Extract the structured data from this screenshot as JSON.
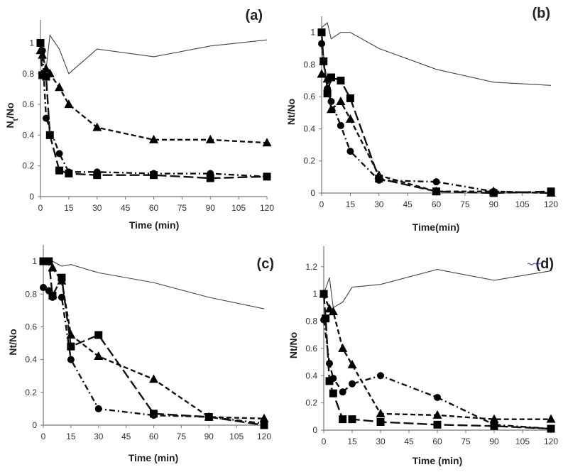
{
  "chart_data": [
    {
      "type": "line",
      "panel_label": "(a)",
      "xlabel": "Time (min)",
      "ylabel": {
        "main": "N",
        "sub": "t",
        "rest": "/No"
      },
      "xlim": [
        0,
        120
      ],
      "ylim": [
        0,
        1.15
      ],
      "xticks": [
        0,
        15,
        30,
        45,
        60,
        75,
        90,
        105,
        120
      ],
      "yticks": [
        0,
        0.2,
        0.4,
        0.6,
        0.8,
        1
      ],
      "grid": false,
      "series": [
        {
          "marker": "none",
          "dash": "solid",
          "x": [
            0,
            3,
            5,
            10,
            15,
            30,
            60,
            90,
            120
          ],
          "y": [
            1,
            0.83,
            1.05,
            0.96,
            0.8,
            0.96,
            0.91,
            0.98,
            1.02
          ]
        },
        {
          "marker": "triangle",
          "dash": "dashed",
          "x": [
            0,
            1,
            3,
            5,
            10,
            15,
            30,
            60,
            90,
            120
          ],
          "y": [
            0.95,
            0.92,
            0.83,
            0.8,
            0.71,
            0.6,
            0.45,
            0.37,
            0.37,
            0.35
          ]
        },
        {
          "marker": "circle",
          "dash": "dash-dot",
          "x": [
            0,
            1,
            3,
            10,
            15,
            30,
            60,
            90,
            120
          ],
          "y": [
            1,
            0.95,
            0.51,
            0.28,
            0.16,
            0.16,
            0.15,
            0.15,
            0.13
          ]
        },
        {
          "marker": "square",
          "dash": "long-dash",
          "x": [
            0,
            1,
            3,
            5,
            10,
            15,
            30,
            60,
            90,
            120
          ],
          "y": [
            1,
            0.79,
            0.78,
            0.4,
            0.17,
            0.15,
            0.14,
            0.14,
            0.12,
            0.13
          ]
        }
      ]
    },
    {
      "type": "line",
      "panel_label": "(b)",
      "xlabel": "Time(min)",
      "ylabel": {
        "main": "Nt/No",
        "sub": "",
        "rest": ""
      },
      "xlim": [
        0,
        120
      ],
      "ylim": [
        0,
        1.1
      ],
      "xticks": [
        0,
        15,
        30,
        45,
        60,
        75,
        90,
        105,
        120
      ],
      "yticks": [
        0,
        0.2,
        0.4,
        0.6,
        0.8,
        1
      ],
      "grid": false,
      "series": [
        {
          "marker": "none",
          "dash": "solid",
          "x": [
            0,
            3,
            5,
            10,
            15,
            30,
            60,
            90,
            120
          ],
          "y": [
            1.03,
            1.06,
            0.96,
            1.0,
            1.0,
            0.9,
            0.77,
            0.69,
            0.67
          ]
        },
        {
          "marker": "square",
          "dash": "long-dash",
          "x": [
            0,
            1,
            3,
            5,
            10,
            15,
            30,
            60,
            90,
            120
          ],
          "y": [
            1.0,
            0.82,
            0.62,
            0.72,
            0.7,
            0.59,
            0.09,
            0.01,
            0.0,
            0.01
          ]
        },
        {
          "marker": "triangle",
          "dash": "dashed",
          "x": [
            0,
            3,
            5,
            10,
            15,
            30,
            60,
            90,
            120
          ],
          "y": [
            0.74,
            0.71,
            0.52,
            0.57,
            0.46,
            0.11,
            0.01,
            0.01,
            0.0
          ]
        },
        {
          "marker": "circle",
          "dash": "dash-dot",
          "x": [
            0,
            3,
            5,
            10,
            15,
            30,
            60,
            90,
            120
          ],
          "y": [
            0.93,
            0.65,
            0.57,
            0.42,
            0.26,
            0.08,
            0.07,
            0.01,
            0.0
          ]
        }
      ]
    },
    {
      "type": "line",
      "panel_label": "(c)",
      "xlabel": "Time (min)",
      "ylabel": {
        "main": "Nt/No",
        "sub": "",
        "rest": ""
      },
      "xlim": [
        0,
        120
      ],
      "ylim": [
        0,
        1.1
      ],
      "xticks": [
        0,
        15,
        30,
        45,
        60,
        75,
        90,
        105,
        120
      ],
      "yticks": [
        0,
        0.2,
        0.4,
        0.6,
        0.8,
        1
      ],
      "grid": false,
      "series": [
        {
          "marker": "none",
          "dash": "solid",
          "x": [
            0,
            5,
            10,
            15,
            30,
            60,
            90,
            120
          ],
          "y": [
            1.0,
            1.0,
            0.97,
            0.98,
            0.93,
            0.87,
            0.78,
            0.71
          ]
        },
        {
          "marker": "square",
          "dash": "long-dash",
          "x": [
            0,
            3,
            5,
            10,
            15,
            30,
            60,
            90,
            120
          ],
          "y": [
            1.0,
            1.0,
            0.79,
            0.9,
            0.48,
            0.55,
            0.07,
            0.05,
            0.0
          ]
        },
        {
          "marker": "triangle",
          "dash": "dashed",
          "x": [
            5,
            10,
            15,
            30,
            60,
            90,
            120
          ],
          "y": [
            0.96,
            0.88,
            0.55,
            0.42,
            0.28,
            0.05,
            0.04
          ]
        },
        {
          "marker": "circle",
          "dash": "dash-dot",
          "x": [
            0,
            3,
            5,
            10,
            15,
            30,
            60,
            90,
            120
          ],
          "y": [
            0.84,
            0.82,
            0.78,
            0.78,
            0.4,
            0.1,
            0.06,
            0.05,
            0.01
          ]
        }
      ]
    },
    {
      "type": "line",
      "panel_label": "(d)",
      "xlabel": "Time (min)",
      "ylabel": {
        "main": "Nt/No",
        "sub": "",
        "rest": ""
      },
      "xlim": [
        0,
        120
      ],
      "ylim": [
        0,
        1.35
      ],
      "xticks": [
        0,
        15,
        30,
        45,
        60,
        75,
        90,
        105,
        120
      ],
      "yticks": [
        0,
        0.2,
        0.4,
        0.6,
        0.8,
        1,
        1.2
      ],
      "grid": false,
      "series": [
        {
          "marker": "none",
          "dash": "solid",
          "x": [
            0,
            3,
            5,
            10,
            15,
            30,
            60,
            90,
            120
          ],
          "y": [
            1.0,
            1.12,
            0.9,
            0.94,
            1.05,
            1.07,
            1.18,
            1.1,
            1.17
          ]
        },
        {
          "marker": "triangle",
          "dash": "dashed",
          "x": [
            0,
            3,
            5,
            10,
            15,
            30,
            60,
            90,
            120
          ],
          "y": [
            1.0,
            0.89,
            0.87,
            0.6,
            0.48,
            0.12,
            0.11,
            0.08,
            0.08
          ]
        },
        {
          "marker": "circle",
          "dash": "dash-dot",
          "x": [
            0,
            3,
            5,
            10,
            15,
            30,
            60,
            90,
            120
          ],
          "y": [
            0.81,
            0.49,
            0.38,
            0.28,
            0.34,
            0.4,
            0.24,
            0.04,
            0.01
          ]
        },
        {
          "marker": "square",
          "dash": "long-dash",
          "x": [
            0,
            1,
            3,
            5,
            10,
            15,
            30,
            60,
            90,
            120
          ],
          "y": [
            1.0,
            0.82,
            0.36,
            0.27,
            0.08,
            0.08,
            0.06,
            0.04,
            0.03,
            0.01
          ]
        }
      ]
    }
  ]
}
